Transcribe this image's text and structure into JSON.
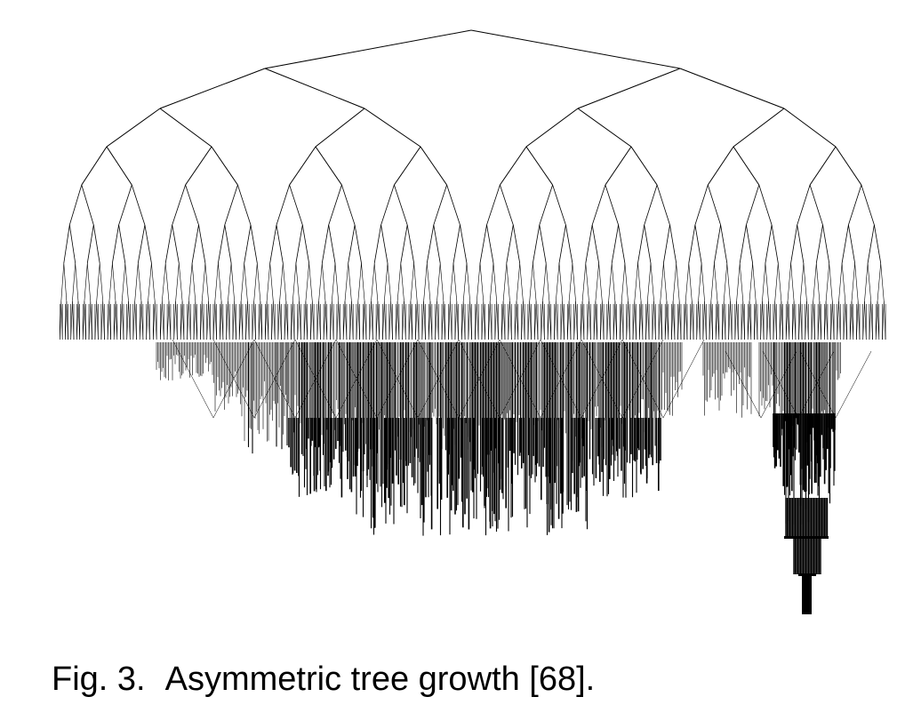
{
  "figure": {
    "caption_label": "Fig. 3.",
    "caption_text": "Asymmetric tree growth [68].",
    "line_color": "#000000",
    "background_color": "#ffffff"
  }
}
